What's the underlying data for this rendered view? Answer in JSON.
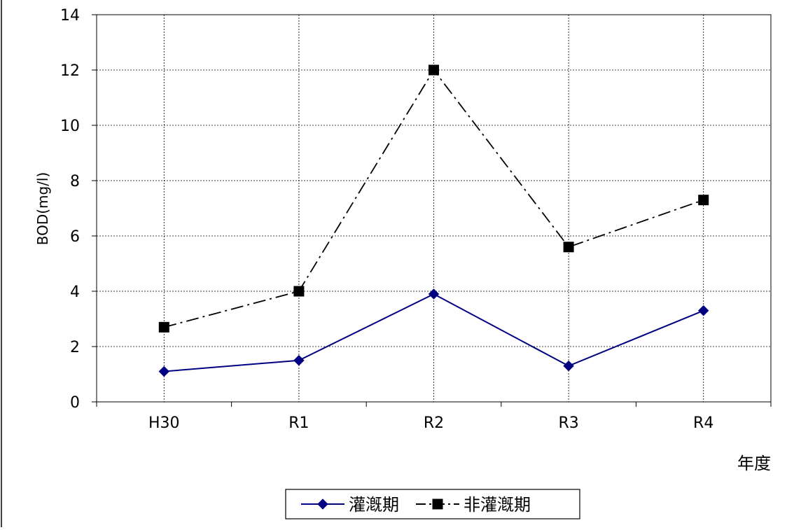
{
  "chart_data": {
    "type": "line",
    "categories": [
      "H30",
      "R1",
      "R2",
      "R3",
      "R4"
    ],
    "series": [
      {
        "name": "灌漑期",
        "values": [
          1.1,
          1.5,
          3.9,
          1.3,
          3.3
        ],
        "color": "#000080",
        "marker": "diamond",
        "line_style": "solid"
      },
      {
        "name": "非灌漑期",
        "values": [
          2.7,
          4.0,
          12.0,
          5.6,
          7.3
        ],
        "color": "#000000",
        "marker": "square",
        "line_style": "dash-dot"
      }
    ],
    "title": "",
    "xlabel": "年度",
    "ylabel": "BOD(mg/l)",
    "ylim": [
      0,
      14
    ],
    "yticks": [
      "0",
      "2",
      "4",
      "6",
      "8",
      "10",
      "12",
      "14"
    ],
    "grid": true,
    "legend_position": "bottom-center"
  }
}
